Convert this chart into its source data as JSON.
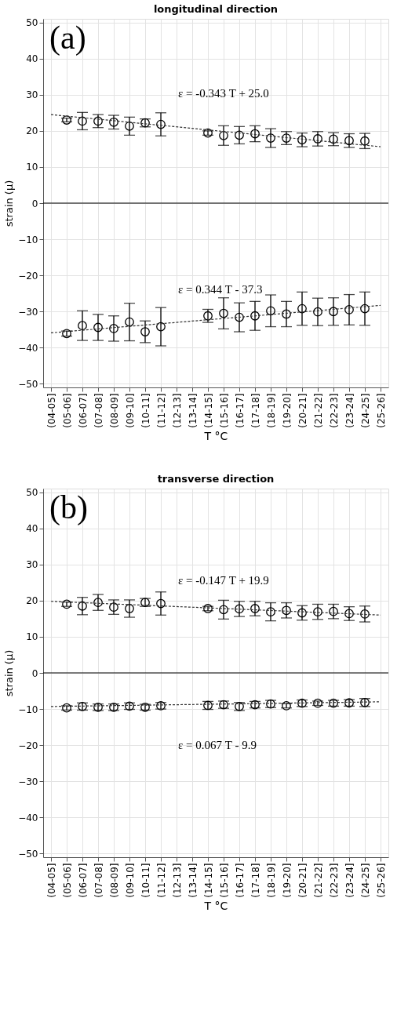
{
  "chart_data": [
    {
      "type": "scatter",
      "title": "longitudinal direction",
      "xlabel": "T °C",
      "ylabel": "strain (μ)",
      "categories": [
        "(04-05]",
        "(05-06]",
        "(06-07]",
        "(07-08]",
        "(08-09]",
        "(09-10]",
        "(10-11]",
        "(11-12]",
        "(12-13]",
        "(13-14]",
        "(14-15]",
        "(15-16]",
        "(16-17]",
        "(17-18]",
        "(18-19]",
        "(19-20]",
        "(20-21]",
        "(21-22]",
        "(22-23]",
        "(23-24]",
        "(24-25]",
        "(25-26]"
      ],
      "ylim": [
        -51,
        51
      ],
      "yticks": [
        -50,
        -40,
        -30,
        -20,
        -10,
        0,
        10,
        20,
        30,
        40,
        50
      ],
      "grid": true,
      "ref_lines": [
        {
          "axis": "y",
          "value": 0,
          "color": "#000000",
          "line_style": "solid"
        }
      ],
      "annotations": [
        "(a)",
        "ε = -0.343 T + 25.0",
        "ε =  0.344 T - 37.3"
      ],
      "series": [
        {
          "marker": "circle",
          "color": "#000000",
          "values": [
            null,
            23.0,
            22.7,
            22.7,
            22.4,
            21.3,
            22.2,
            21.8,
            null,
            null,
            19.4,
            18.7,
            18.8,
            19.2,
            18.0,
            18.0,
            17.5,
            17.8,
            17.7,
            17.3,
            17.2,
            null
          ],
          "errors": [
            null,
            0.5,
            2.4,
            1.8,
            1.9,
            2.5,
            1.1,
            3.2,
            null,
            null,
            0.6,
            2.7,
            2.4,
            2.2,
            2.6,
            1.8,
            1.9,
            2.0,
            1.8,
            1.9,
            2.1,
            null
          ]
        },
        {
          "marker": "circle",
          "color": "#000000",
          "values": [
            null,
            -36.1,
            -33.9,
            -34.4,
            -34.7,
            -32.9,
            -35.6,
            -34.2,
            null,
            null,
            -31.2,
            -30.5,
            -31.6,
            -31.2,
            -29.8,
            -30.7,
            -29.2,
            -30.1,
            -30.0,
            -29.5,
            -29.2,
            null
          ],
          "errors": [
            null,
            0.7,
            4.1,
            3.6,
            3.5,
            5.2,
            3.0,
            5.3,
            null,
            null,
            1.8,
            4.3,
            4.0,
            4.0,
            4.4,
            3.5,
            4.6,
            3.8,
            3.8,
            4.2,
            4.6,
            null
          ]
        },
        {
          "type": "line",
          "color": "#333333",
          "line_style": "dashed",
          "x": [
            "(04-05]",
            "(25-26]"
          ],
          "values": [
            24.5,
            15.6
          ]
        },
        {
          "type": "line",
          "color": "#333333",
          "line_style": "dashed",
          "x": [
            "(04-05]",
            "(25-26]"
          ],
          "values": [
            -35.9,
            -28.3
          ]
        }
      ]
    },
    {
      "type": "scatter",
      "title": "transverse direction",
      "xlabel": "T °C",
      "ylabel": "strain (μ)",
      "categories": [
        "(04-05]",
        "(05-06]",
        "(06-07]",
        "(07-08]",
        "(08-09]",
        "(09-10]",
        "(10-11]",
        "(11-12]",
        "(12-13]",
        "(13-14]",
        "(14-15]",
        "(15-16]",
        "(16-17]",
        "(17-18]",
        "(18-19]",
        "(19-20]",
        "(20-21]",
        "(21-22]",
        "(22-23]",
        "(23-24]",
        "(24-25]",
        "(25-26]"
      ],
      "ylim": [
        -51,
        51
      ],
      "yticks": [
        -50,
        -40,
        -30,
        -20,
        -10,
        0,
        10,
        20,
        30,
        40,
        50
      ],
      "grid": true,
      "ref_lines": [
        {
          "axis": "y",
          "value": 0,
          "color": "#000000",
          "line_style": "solid"
        }
      ],
      "annotations": [
        "(b)",
        "ε = -0.147 T + 19.9",
        "ε =  0.067 T - 9.9"
      ],
      "series": [
        {
          "marker": "circle",
          "color": "#000000",
          "values": [
            null,
            19.0,
            18.5,
            19.5,
            18.2,
            17.8,
            19.5,
            19.2,
            null,
            null,
            17.8,
            17.5,
            17.7,
            17.8,
            16.9,
            17.3,
            16.6,
            16.9,
            17.0,
            16.4,
            16.3,
            null
          ],
          "errors": [
            null,
            0.6,
            2.4,
            2.2,
            2.0,
            2.4,
            1.1,
            3.2,
            null,
            null,
            0.6,
            2.6,
            2.1,
            2.0,
            2.5,
            2.1,
            2.0,
            2.1,
            2.0,
            1.9,
            2.2,
            null
          ]
        },
        {
          "marker": "circle",
          "color": "#000000",
          "values": [
            null,
            -9.7,
            -9.3,
            -9.5,
            -9.5,
            -9.2,
            -9.5,
            -9.1,
            null,
            null,
            -9.0,
            -8.8,
            -9.3,
            -8.8,
            -8.6,
            -9.1,
            -8.4,
            -8.4,
            -8.4,
            -8.3,
            -8.2,
            null
          ],
          "errors": [
            null,
            0.6,
            1.0,
            0.9,
            0.9,
            0.9,
            0.8,
            0.9,
            null,
            null,
            1.1,
            1.0,
            1.1,
            0.9,
            1.0,
            0.6,
            0.9,
            0.6,
            0.8,
            0.9,
            1.1,
            null
          ]
        },
        {
          "type": "line",
          "color": "#333333",
          "line_style": "dashed",
          "x": [
            "(04-05]",
            "(25-26]"
          ],
          "values": [
            19.8,
            16.0
          ]
        },
        {
          "type": "line",
          "color": "#333333",
          "line_style": "dashed",
          "x": [
            "(04-05]",
            "(25-26]"
          ],
          "values": [
            -9.3,
            -8.0
          ]
        }
      ]
    }
  ]
}
